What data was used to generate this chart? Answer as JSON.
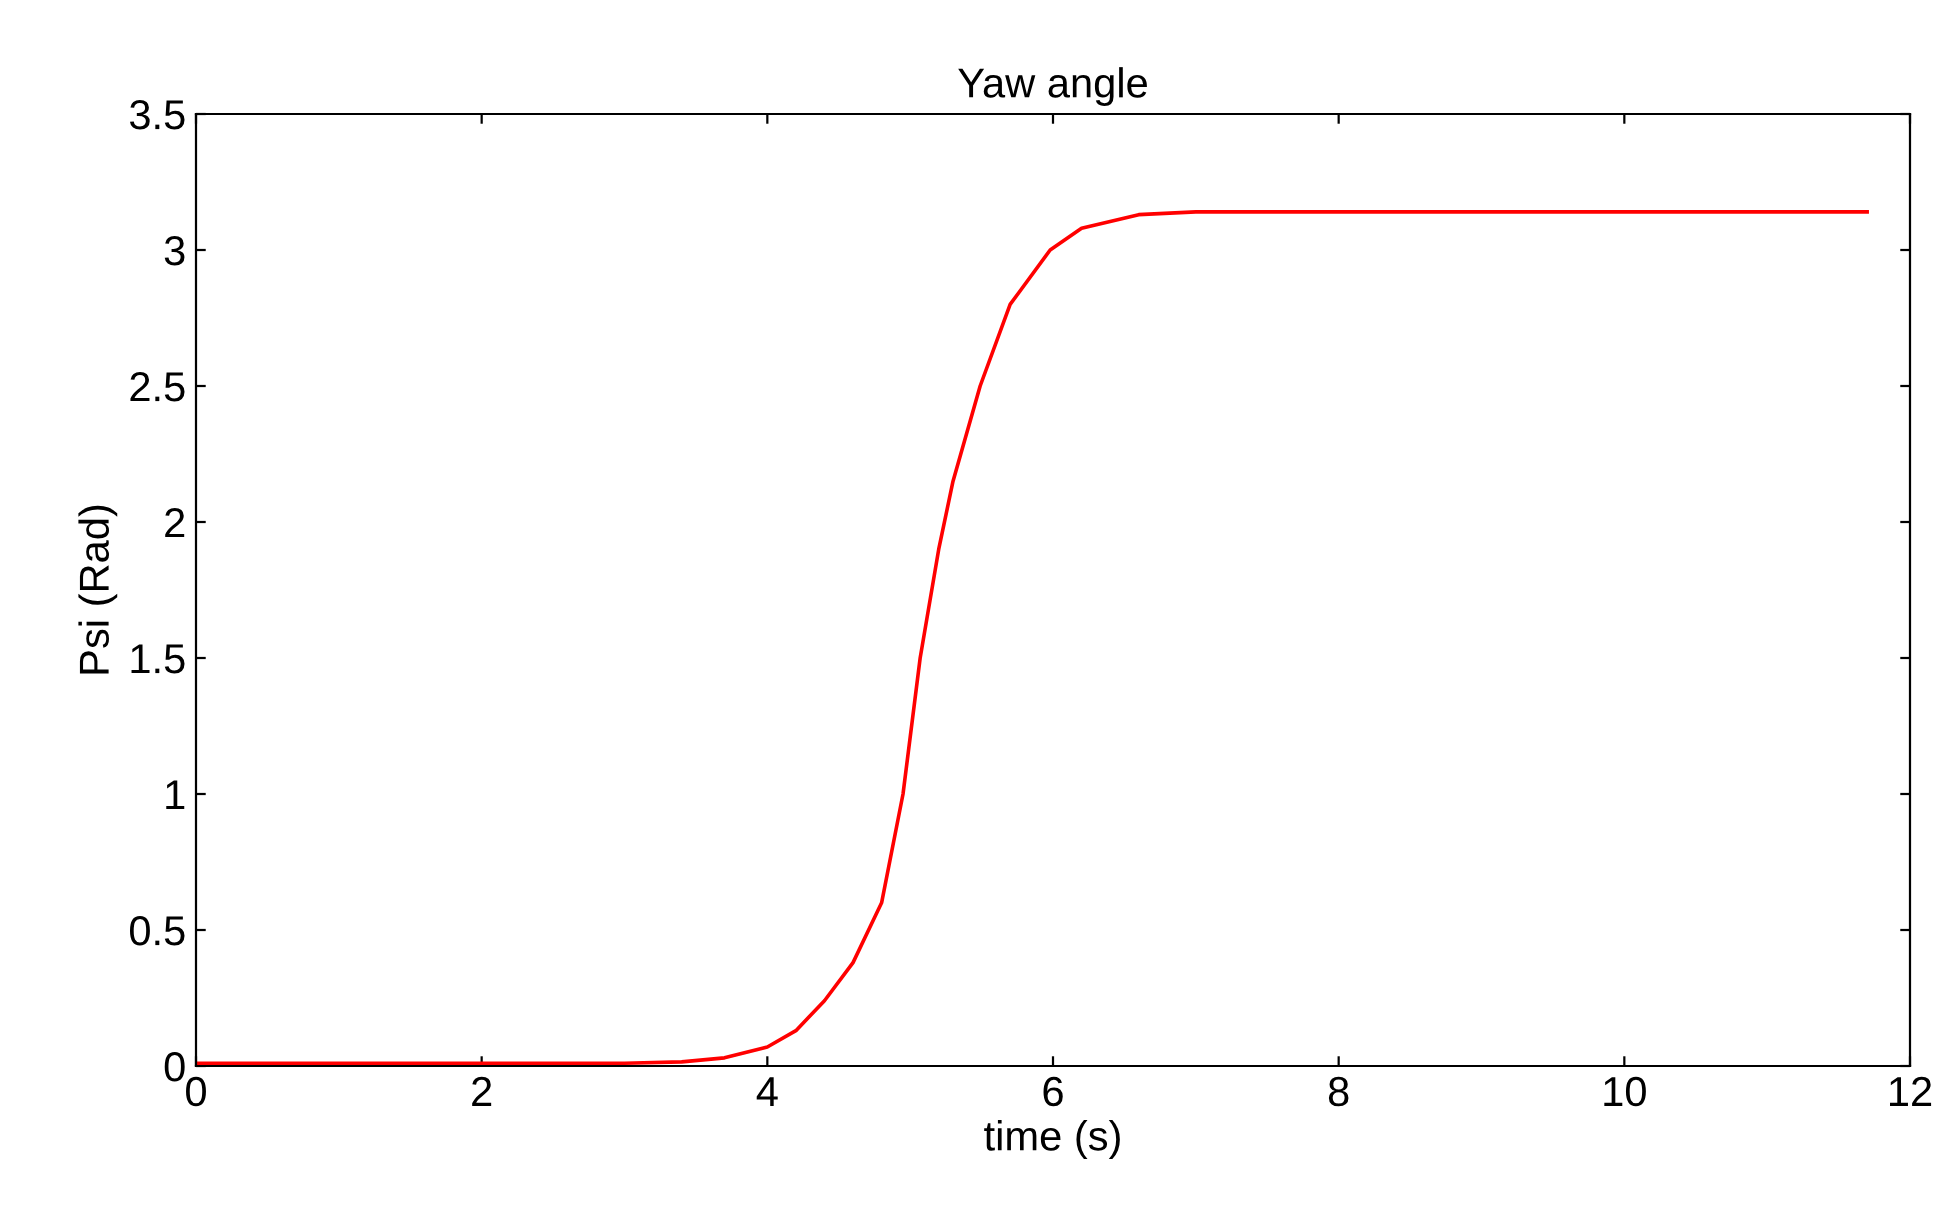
{
  "chart_data": {
    "type": "line",
    "title": "Yaw angle",
    "xlabel": "time (s)",
    "ylabel": "Psi (Rad)",
    "series": [
      {
        "color": "#ff0000",
        "x": [
          0,
          1,
          2,
          3,
          3.4,
          3.7,
          4.0,
          4.2,
          4.4,
          4.6,
          4.8,
          4.95,
          5.07,
          5.2,
          5.3,
          5.49,
          5.7,
          5.98,
          6.2,
          6.6,
          7.0,
          9,
          11.7
        ],
        "values": [
          0.01,
          0.01,
          0.01,
          0.01,
          0.015,
          0.03,
          0.07,
          0.13,
          0.24,
          0.38,
          0.6,
          1.0,
          1.5,
          1.9,
          2.15,
          2.5,
          2.8,
          3.0,
          3.08,
          3.13,
          3.14,
          3.14,
          3.14
        ]
      }
    ],
    "xlim": [
      0,
      12
    ],
    "xticks": [
      0,
      2,
      4,
      6,
      8,
      10,
      12
    ],
    "ylim": [
      0,
      3.5
    ],
    "yticks": [
      0,
      0.5,
      1,
      1.5,
      2,
      2.5,
      3,
      3.5
    ],
    "grid": false,
    "legend": false,
    "marker": "none",
    "line_style": "solid"
  }
}
